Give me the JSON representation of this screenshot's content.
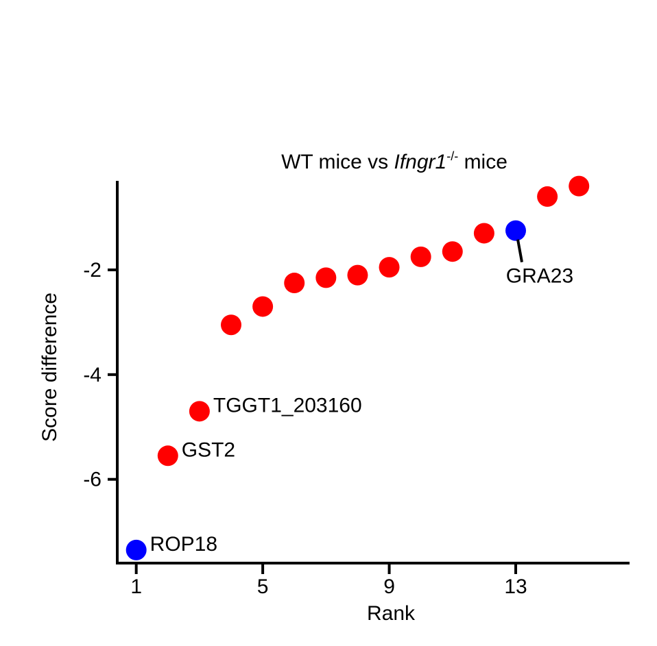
{
  "chart_data": {
    "type": "scatter",
    "title": "WT mice vs Ifngr1-/- mice",
    "title_parts": {
      "prefix": "WT mice vs ",
      "gene": "Ifngr1",
      "superscript": "-/-",
      "suffix": " mice"
    },
    "xlabel": "Rank",
    "ylabel": "Score difference",
    "xlim": [
      0.4,
      16.6
    ],
    "ylim": [
      -7.6,
      -0.3
    ],
    "x_ticks": [
      1,
      5,
      9,
      13
    ],
    "x_tick_labels": [
      "1",
      "5",
      "9",
      "13"
    ],
    "y_ticks": [
      -2,
      -4,
      -6
    ],
    "y_tick_labels": [
      "-2",
      "-4",
      "-6"
    ],
    "colors": {
      "highlight": "#0000ff",
      "default": "#ff0000"
    },
    "points": [
      {
        "x": 1,
        "y": -7.35,
        "color": "#0000ff",
        "label": "ROP18",
        "label_pos": "right"
      },
      {
        "x": 2,
        "y": -5.55,
        "color": "#ff0000",
        "label": "GST2",
        "label_pos": "right"
      },
      {
        "x": 3,
        "y": -4.7,
        "color": "#ff0000",
        "label": "TGGT1_203160",
        "label_pos": "right"
      },
      {
        "x": 4,
        "y": -3.05,
        "color": "#ff0000"
      },
      {
        "x": 5,
        "y": -2.7,
        "color": "#ff0000"
      },
      {
        "x": 6,
        "y": -2.25,
        "color": "#ff0000"
      },
      {
        "x": 7,
        "y": -2.15,
        "color": "#ff0000"
      },
      {
        "x": 8,
        "y": -2.1,
        "color": "#ff0000"
      },
      {
        "x": 9,
        "y": -1.95,
        "color": "#ff0000"
      },
      {
        "x": 10,
        "y": -1.75,
        "color": "#ff0000"
      },
      {
        "x": 11,
        "y": -1.65,
        "color": "#ff0000"
      },
      {
        "x": 12,
        "y": -1.3,
        "color": "#ff0000"
      },
      {
        "x": 13,
        "y": -1.25,
        "color": "#0000ff",
        "label": "GRA23",
        "label_pos": "below-leader"
      },
      {
        "x": 14,
        "y": -0.6,
        "color": "#ff0000"
      },
      {
        "x": 15,
        "y": -0.4,
        "color": "#ff0000"
      }
    ]
  }
}
